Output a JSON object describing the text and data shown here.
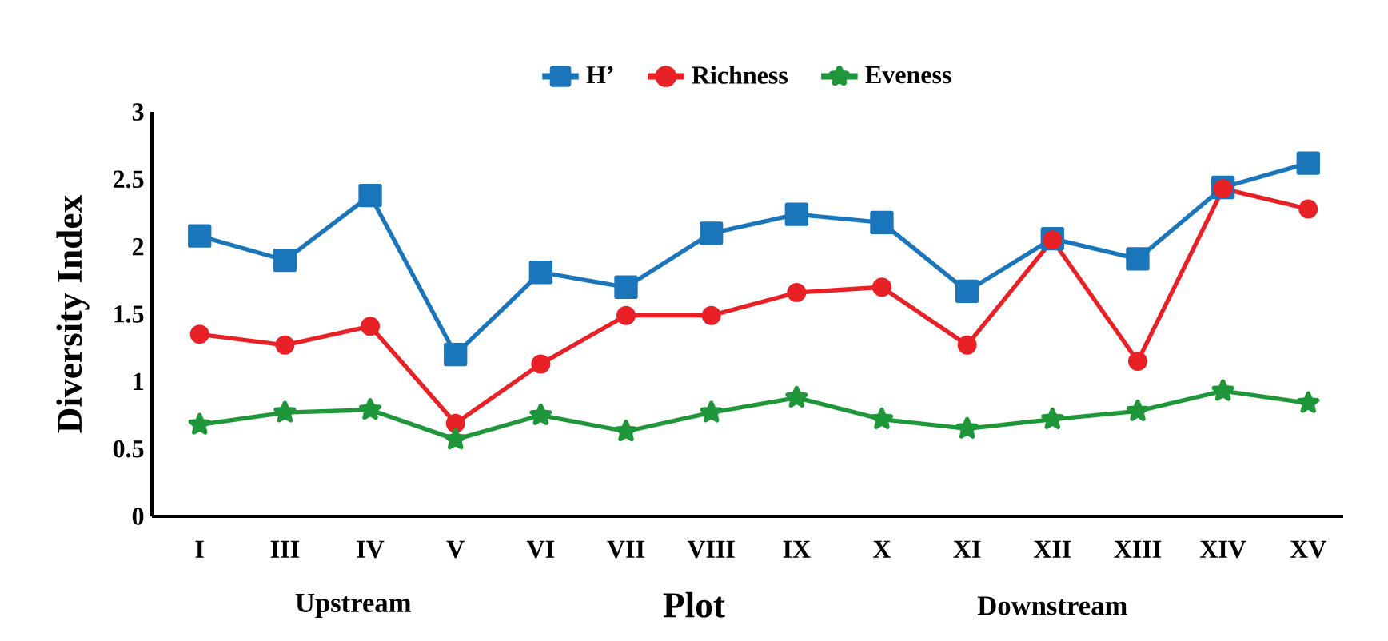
{
  "chart_data": {
    "type": "line",
    "xlabel": "Plot",
    "ylabel": "Diversity Index",
    "categories": [
      "I",
      "III",
      "IV",
      "V",
      "VI",
      "VII",
      "VIII",
      "IX",
      "X",
      "XI",
      "XII",
      "XIII",
      "XIV",
      "XV"
    ],
    "series": [
      {
        "name": "H’",
        "color": "#1a75bb",
        "marker": "square",
        "values": [
          2.08,
          1.9,
          2.38,
          1.2,
          1.81,
          1.7,
          2.1,
          2.24,
          2.18,
          1.67,
          2.06,
          1.91,
          2.44,
          2.62
        ]
      },
      {
        "name": "Richness",
        "color": "#e82127",
        "marker": "circle",
        "values": [
          1.35,
          1.27,
          1.41,
          0.69,
          1.13,
          1.49,
          1.49,
          1.66,
          1.7,
          1.27,
          2.05,
          1.15,
          2.43,
          2.28
        ]
      },
      {
        "name": "Eveness",
        "color": "#1e9639",
        "marker": "star",
        "values": [
          0.68,
          0.77,
          0.79,
          0.57,
          0.75,
          0.63,
          0.77,
          0.88,
          0.72,
          0.65,
          0.72,
          0.78,
          0.93,
          0.84
        ]
      }
    ],
    "ylim": [
      0,
      3
    ],
    "yticks": [
      0,
      0.5,
      1,
      1.5,
      2,
      2.5,
      3
    ],
    "grid": false,
    "legend": "top",
    "line_style": "solid",
    "annotations": [
      "Upstream",
      "Downstream"
    ]
  }
}
